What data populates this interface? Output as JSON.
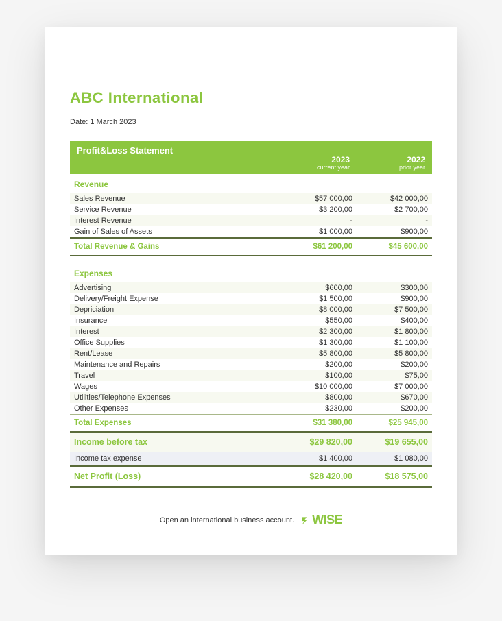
{
  "company_name": "ABC International",
  "date_label": "Date: 1 March 2023",
  "statement": {
    "title": "Profit&Loss Statement",
    "col1_year": "2023",
    "col1_sub": "current year",
    "col2_year": "2022",
    "col2_sub": "prior year"
  },
  "colors": {
    "accent": "#8cc63f",
    "stripe_a": "#f7f9f0",
    "stripe_b": "#ffffff",
    "tax_bg": "#eef0f5",
    "border": "#5a6b3a"
  },
  "revenue": {
    "label": "Revenue",
    "rows": [
      {
        "label": "Sales Revenue",
        "y1": "$57 000,00",
        "y2": "$42 000,00"
      },
      {
        "label": "Service Revenue",
        "y1": "$3 200,00",
        "y2": "$2 700,00"
      },
      {
        "label": "Interest Revenue",
        "y1": "-",
        "y2": "-"
      },
      {
        "label": "Gain of Sales of Assets",
        "y1": "$1 000,00",
        "y2": "$900,00"
      }
    ],
    "total_label": "Total Revenue & Gains",
    "total_y1": "$61 200,00",
    "total_y2": "$45 600,00"
  },
  "expenses": {
    "label": "Expenses",
    "rows": [
      {
        "label": "Advertising",
        "y1": "$600,00",
        "y2": "$300,00"
      },
      {
        "label": "Delivery/Freight Expense",
        "y1": "$1 500,00",
        "y2": "$900,00"
      },
      {
        "label": "Depriciation",
        "y1": "$8 000,00",
        "y2": "$7 500,00"
      },
      {
        "label": "Insurance",
        "y1": "$550,00",
        "y2": "$400,00"
      },
      {
        "label": "Interest",
        "y1": "$2 300,00",
        "y2": "$1 800,00"
      },
      {
        "label": "Office Supplies",
        "y1": "$1 300,00",
        "y2": "$1 100,00"
      },
      {
        "label": "Rent/Lease",
        "y1": "$5 800,00",
        "y2": "$5 800,00"
      },
      {
        "label": "Maintenance and Repairs",
        "y1": "$200,00",
        "y2": "$200,00"
      },
      {
        "label": "Travel",
        "y1": "$100,00",
        "y2": "$75,00"
      },
      {
        "label": "Wages",
        "y1": "$10 000,00",
        "y2": "$7 000,00"
      },
      {
        "label": "Utilities/Telephone Expenses",
        "y1": "$800,00",
        "y2": "$670,00"
      },
      {
        "label": "Other Expenses",
        "y1": "$230,00",
        "y2": "$200,00"
      }
    ],
    "total_label": "Total Expenses",
    "total_y1": "$31 380,00",
    "total_y2": "$25 945,00"
  },
  "income_before_tax": {
    "label": "Income before tax",
    "y1": "$29 820,00",
    "y2": "$19 655,00"
  },
  "tax": {
    "label": "Income tax expense",
    "y1": "$1 400,00",
    "y2": "$1 080,00"
  },
  "net": {
    "label": "Net Profit (Loss)",
    "y1": "$28 420,00",
    "y2": "$18 575,00"
  },
  "footer": {
    "text": "Open an international business account.",
    "brand": "WISE"
  }
}
